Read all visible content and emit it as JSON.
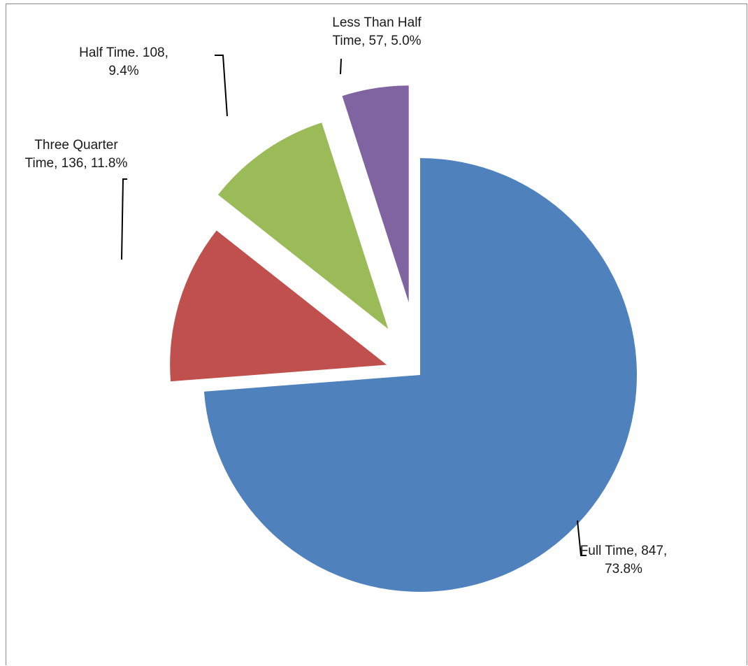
{
  "chart_data": {
    "type": "pie",
    "exploded": true,
    "legend": "none",
    "slices": [
      {
        "category": "Full Time",
        "value": 847,
        "percent": 73.8,
        "color": "#4f81bd",
        "label_lines": [
          "Full Time, 847,",
          "73.8%"
        ]
      },
      {
        "category": "Three Quarter Time",
        "value": 136,
        "percent": 11.8,
        "color": "#c0504d",
        "label_lines": [
          "Three Quarter",
          "Time, 136, 11.8%"
        ]
      },
      {
        "category": "Half Time",
        "value": 108,
        "percent": 9.4,
        "color": "#9bbb59",
        "label_lines": [
          "Half Time. 108,",
          "9.4%"
        ]
      },
      {
        "category": "Less Than Half Time",
        "value": 57,
        "percent": 5.0,
        "color": "#8064a2",
        "label_lines": [
          "Less Than Half",
          "Time, 57, 5.0%"
        ]
      }
    ]
  }
}
